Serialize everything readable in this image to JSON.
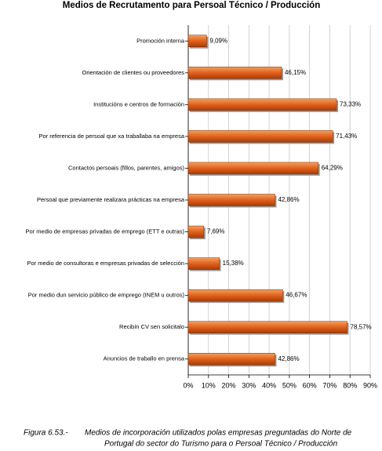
{
  "chart_data": {
    "type": "bar",
    "orientation": "horizontal",
    "title": "Medios de Recrutamento para Persoal Técnico / Producción",
    "categories": [
      "Promoción interna",
      "Orientación de clientes ou proveedores",
      "Institucións e centros de formación",
      "Por referencia de persoal que xa traballaba na empresa",
      "Contactos persoais (fillos, parentes, amigos)",
      "Persoal que previamente realizara prácticas na empresa",
      "Por medio de empresas privadas de emprego (ETT e outras)",
      "Por medio  de consultoras e empresas privadas de selección",
      "Por medio dun servicio público de emprego (INEM u outros)",
      "Recibín CV sen solicitalo",
      "Anuncios de traballo en prensa"
    ],
    "values": [
      9.09,
      46.15,
      73.33,
      71.43,
      64.29,
      42.86,
      7.69,
      15.38,
      46.67,
      78.57,
      42.86
    ],
    "value_labels": [
      "9,09%",
      "46,15%",
      "73,33%",
      "71,43%",
      "64,29%",
      "42,86%",
      "7,69%",
      "15,38%",
      "46,67%",
      "78,57%",
      "42,86%"
    ],
    "color": "#e0621c",
    "xlim": [
      0,
      90
    ],
    "xticks": [
      {
        "value": 0,
        "label": "0%"
      },
      {
        "value": 10,
        "label": "10%"
      },
      {
        "value": 20,
        "label": "20%"
      },
      {
        "value": 30,
        "label": "30%"
      },
      {
        "value": 40,
        "label": "40%"
      },
      {
        "value": 50,
        "label": "50%"
      },
      {
        "value": 60,
        "label": "60%"
      },
      {
        "value": 70,
        "label": "70%"
      },
      {
        "value": 80,
        "label": "80%"
      },
      {
        "value": 90,
        "label": "90%"
      }
    ],
    "grid": true
  },
  "caption": {
    "label": "Figura 6.53.-",
    "lines": [
      "Medios de incorporación utilizados polas empresas preguntadas do Norte de",
      "Portugal do sector do Turismo para o Persoal Técnico / Producción"
    ]
  }
}
